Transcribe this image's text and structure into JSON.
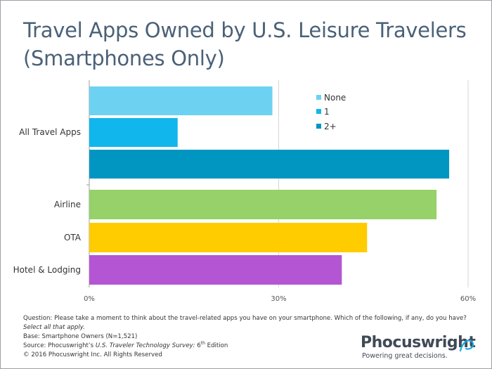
{
  "title_line1": "Travel Apps Owned by U.S. Leisure Travelers",
  "title_line2": "(Smartphones Only)",
  "chart_data": {
    "type": "bar",
    "orientation": "horizontal",
    "xlim": [
      0,
      60
    ],
    "x_ticks": [
      "0%",
      "30%",
      "60%"
    ],
    "x_tick_values": [
      0,
      30,
      60
    ],
    "grid": true,
    "legend_position": "top-right",
    "groups": [
      {
        "label": "All Travel Apps",
        "bars": [
          {
            "name": "None",
            "value": 29,
            "color": "#6dd2f2"
          },
          {
            "name": "1",
            "value": 14,
            "color": "#11b6ec"
          },
          {
            "name": "2+",
            "value": 57,
            "color": "#0196c2"
          }
        ]
      }
    ],
    "categories": [
      "Airline",
      "OTA",
      "Hotel & Lodging"
    ],
    "values": [
      55,
      44,
      40
    ],
    "category_colors": [
      "#96d169",
      "#ffcc00",
      "#b455d3"
    ],
    "legend": [
      {
        "name": "None",
        "color": "#6dd2f2"
      },
      {
        "name": "1",
        "color": "#11b6ec"
      },
      {
        "name": "2+",
        "color": "#0196c2"
      }
    ]
  },
  "footer": {
    "question_prefix": "Question: Please take a moment to think about the travel-related apps you have on your smartphone. Which of the following, if any, do you have? ",
    "question_italic": "Select all that apply.",
    "base": "Base: Smartphone Owners (N=1,521)",
    "source_prefix": "Source: Phocuswright’s ",
    "source_italic": "U.S. Traveler Technology Survey:",
    "source_edition": " 6",
    "source_sup": "th",
    "source_suffix": " Edition",
    "copyright": "© 2016 Phocuswright Inc. All Rights Reserved"
  },
  "brand": {
    "name": "Phocuswright",
    "tagline": "Powering great decisions."
  }
}
